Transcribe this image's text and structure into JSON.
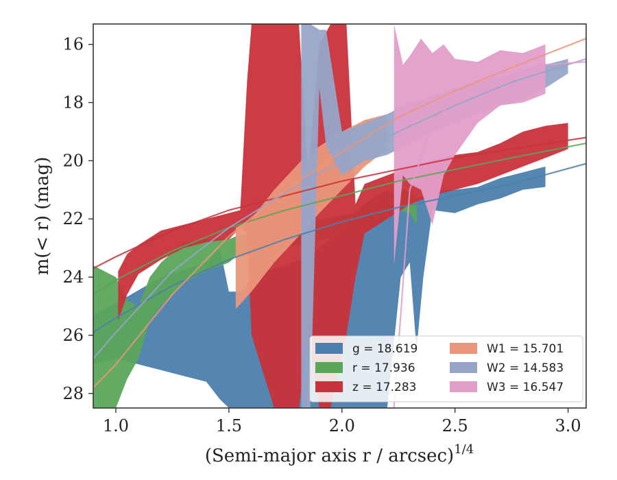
{
  "chart_data": {
    "type": "area",
    "xlabel": "(Semi-major axis r / arcsec)",
    "xlabel_sup": "1/4",
    "ylabel": "m(< r) (mag)",
    "xlim": [
      0.9,
      3.08
    ],
    "ylim": [
      28.5,
      15.3
    ],
    "y_inverted": true,
    "grid": false,
    "legend_placement": "bottom-right",
    "xticks": [
      1.0,
      1.5,
      2.0,
      2.5,
      3.0
    ],
    "xtick_labels": [
      "1.0",
      "1.5",
      "2.0",
      "2.5",
      "3.0"
    ],
    "yticks": [
      16,
      18,
      20,
      22,
      24,
      26,
      28
    ],
    "ytick_labels": [
      "16",
      "18",
      "20",
      "22",
      "24",
      "26",
      "28"
    ],
    "series": [
      {
        "name": "g = 18.619",
        "color": "#4c7fad",
        "band": [
          [
            0.9,
            25.3,
            27.0
          ],
          [
            1.0,
            24.9,
            26.8
          ],
          [
            1.2,
            24.0,
            27.2
          ],
          [
            1.4,
            23.5,
            27.6
          ],
          [
            1.46,
            23.0,
            28.2
          ],
          [
            1.5,
            24.5,
            28.5
          ],
          [
            1.56,
            24.5,
            28.5
          ],
          [
            1.6,
            24.0,
            28.5
          ],
          [
            1.7,
            23.7,
            28.5
          ],
          [
            1.82,
            23.4,
            28.5
          ],
          [
            1.9,
            23.0,
            28.5
          ],
          [
            2.0,
            22.3,
            28.5
          ],
          [
            2.1,
            21.5,
            28.5
          ],
          [
            2.2,
            21.0,
            28.5
          ],
          [
            2.26,
            21.5,
            24.0
          ],
          [
            2.3,
            21.4,
            23.5
          ],
          [
            2.33,
            21.3,
            26.5
          ],
          [
            2.36,
            21.2,
            24.0
          ],
          [
            2.4,
            21.0,
            21.7
          ],
          [
            2.5,
            21.0,
            21.8
          ],
          [
            2.6,
            20.9,
            21.5
          ],
          [
            2.7,
            20.6,
            21.3
          ],
          [
            2.8,
            20.4,
            21.0
          ],
          [
            2.9,
            20.2,
            20.9
          ]
        ],
        "profile_fit": [
          [
            0.9,
            25.9
          ],
          [
            1.0,
            25.4
          ],
          [
            1.25,
            24.3
          ],
          [
            1.5,
            23.4
          ],
          [
            1.75,
            22.7
          ],
          [
            2.0,
            22.1
          ],
          [
            2.25,
            21.6
          ],
          [
            2.5,
            21.2
          ],
          [
            2.75,
            20.8
          ],
          [
            3.08,
            20.1
          ]
        ]
      },
      {
        "name": "r = 17.936",
        "color": "#5ba55b",
        "band": [
          [
            0.9,
            23.6,
            28.5
          ],
          [
            1.0,
            24.0,
            28.5
          ],
          [
            1.05,
            24.8,
            27.5
          ],
          [
            1.1,
            25.0,
            26.8
          ],
          [
            1.15,
            24.0,
            25.5
          ],
          [
            1.2,
            23.5,
            25.0
          ],
          [
            1.3,
            22.8,
            24.2
          ],
          [
            1.4,
            22.7,
            23.8
          ],
          [
            1.5,
            22.7,
            23.5
          ],
          [
            1.53,
            22.6,
            23.3
          ],
          [
            2.05,
            21.8,
            22.5
          ],
          [
            2.1,
            21.5,
            22.3
          ],
          [
            2.15,
            21.3,
            22.0
          ],
          [
            2.2,
            21.2,
            21.8
          ],
          [
            2.25,
            21.0,
            21.7
          ],
          [
            2.3,
            21.0,
            21.8
          ],
          [
            2.33,
            21.2,
            22.2
          ]
        ],
        "profile_fit": [
          [
            0.9,
            24.6
          ],
          [
            1.0,
            24.1
          ],
          [
            1.25,
            23.1
          ],
          [
            1.5,
            22.3
          ],
          [
            1.75,
            21.7
          ],
          [
            2.0,
            21.2
          ],
          [
            2.25,
            20.7
          ],
          [
            2.5,
            20.3
          ],
          [
            2.75,
            19.9
          ],
          [
            3.08,
            19.4
          ]
        ]
      },
      {
        "name": "z = 17.283",
        "color": "#c8323a",
        "band": [
          [
            1.01,
            23.8,
            25.5
          ],
          [
            1.05,
            23.2,
            24.6
          ],
          [
            1.1,
            22.9,
            23.9
          ],
          [
            1.2,
            22.4,
            23.4
          ],
          [
            1.3,
            22.2,
            23.0
          ],
          [
            1.4,
            22.0,
            22.8
          ],
          [
            1.5,
            21.8,
            22.7
          ],
          [
            1.55,
            21.7,
            22.3
          ],
          [
            1.58,
            17.3,
            22.5
          ],
          [
            1.6,
            15.3,
            26.0
          ],
          [
            1.7,
            15.3,
            28.5
          ],
          [
            1.81,
            15.3,
            28.5
          ],
          [
            1.85,
            20.5,
            26.0
          ],
          [
            1.9,
            16.0,
            28.5
          ],
          [
            1.95,
            15.3,
            28.5
          ],
          [
            2.02,
            15.3,
            26.0
          ],
          [
            2.06,
            21.5,
            24.0
          ],
          [
            2.1,
            20.8,
            22.5
          ],
          [
            2.2,
            20.5,
            22.0
          ],
          [
            2.3,
            20.2,
            21.5
          ],
          [
            2.4,
            20.0,
            21.2
          ],
          [
            2.5,
            19.8,
            21.0
          ],
          [
            2.6,
            19.7,
            20.8
          ],
          [
            2.7,
            19.4,
            20.5
          ],
          [
            2.8,
            19.0,
            20.2
          ],
          [
            2.9,
            18.8,
            19.9
          ],
          [
            3.0,
            18.7,
            19.6
          ]
        ],
        "profile_fit": [
          [
            0.9,
            23.7
          ],
          [
            1.0,
            23.3
          ],
          [
            1.25,
            22.4
          ],
          [
            1.5,
            21.7
          ],
          [
            1.75,
            21.2
          ],
          [
            2.0,
            20.7
          ],
          [
            2.25,
            20.3
          ],
          [
            2.5,
            19.9
          ],
          [
            2.75,
            19.6
          ],
          [
            3.08,
            19.2
          ]
        ]
      },
      {
        "name": "W1 = 15.701",
        "color": "#e9977a",
        "band": [
          [
            1.53,
            22.3,
            25.1
          ],
          [
            1.6,
            22.0,
            24.5
          ],
          [
            1.7,
            21.0,
            23.5
          ],
          [
            1.82,
            20.0,
            22.5
          ],
          [
            1.9,
            19.5,
            21.8
          ],
          [
            2.0,
            19.0,
            21.0
          ],
          [
            2.1,
            18.6,
            20.2
          ],
          [
            2.2,
            18.4,
            19.6
          ]
        ],
        "profile_fit": [
          [
            0.9,
            27.8
          ],
          [
            1.0,
            27.0
          ],
          [
            1.25,
            24.6
          ],
          [
            1.5,
            22.6
          ],
          [
            1.75,
            21.0
          ],
          [
            2.0,
            19.7
          ],
          [
            2.25,
            18.5
          ],
          [
            2.5,
            17.6
          ],
          [
            2.75,
            16.8
          ],
          [
            3.08,
            15.8
          ]
        ]
      },
      {
        "name": "W2 = 14.583",
        "color": "#97a5c8",
        "band": [
          [
            1.82,
            15.3,
            28.5
          ],
          [
            1.86,
            15.3,
            28.5
          ],
          [
            1.9,
            15.5,
            17.5
          ],
          [
            1.93,
            15.5,
            19.5
          ],
          [
            2.0,
            19.0,
            20.5
          ],
          [
            2.1,
            18.7,
            20.0
          ],
          [
            2.2,
            18.4,
            19.8
          ],
          [
            2.3,
            18.0,
            19.4
          ],
          [
            2.4,
            17.8,
            19.0
          ],
          [
            2.5,
            17.5,
            18.7
          ],
          [
            2.6,
            17.3,
            18.4
          ],
          [
            2.7,
            17.1,
            18.1
          ],
          [
            2.8,
            16.9,
            17.9
          ],
          [
            2.9,
            16.7,
            17.5
          ],
          [
            3.0,
            16.5,
            17.0
          ]
        ],
        "profile_fit": [
          [
            0.9,
            26.8
          ],
          [
            1.0,
            25.9
          ],
          [
            1.25,
            23.8
          ],
          [
            1.5,
            22.3
          ],
          [
            1.75,
            21.1
          ],
          [
            2.0,
            20.0
          ],
          [
            2.25,
            19.0
          ],
          [
            2.5,
            18.1
          ],
          [
            2.75,
            17.3
          ],
          [
            3.08,
            16.5
          ]
        ]
      },
      {
        "name": "W3 = 16.547",
        "color": "#e19ec9",
        "band": [
          [
            2.23,
            15.3,
            23.6
          ],
          [
            2.27,
            16.7,
            20.5
          ],
          [
            2.3,
            16.4,
            20.8
          ],
          [
            2.35,
            15.8,
            21.0
          ],
          [
            2.4,
            16.3,
            22.2
          ],
          [
            2.45,
            16.0,
            20.5
          ],
          [
            2.5,
            16.5,
            19.8
          ],
          [
            2.6,
            16.6,
            18.7
          ],
          [
            2.7,
            16.2,
            18.1
          ],
          [
            2.8,
            16.3,
            18.0
          ],
          [
            2.9,
            16.0,
            17.7
          ]
        ],
        "profile_fit": [
          [
            2.23,
            28.5
          ],
          [
            2.3,
            21.0
          ],
          [
            2.4,
            18.8
          ],
          [
            2.5,
            17.8
          ],
          [
            2.7,
            17.0
          ],
          [
            2.9,
            16.7
          ],
          [
            3.08,
            16.6
          ]
        ]
      }
    ]
  }
}
